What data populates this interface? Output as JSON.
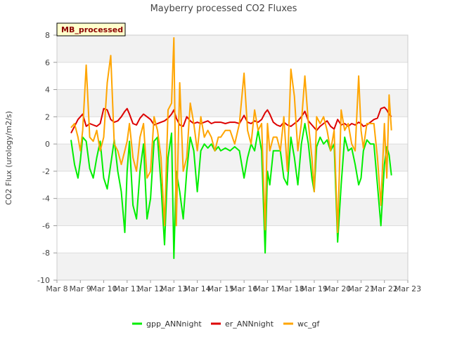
{
  "chart_data": {
    "type": "line",
    "title": "Mayberry processed CO2 Fluxes",
    "ylabel": "CO2 Flux (urology/m2/s)",
    "xlabel": "",
    "ylim": [
      -10,
      8
    ],
    "yticks": [
      -10,
      -8,
      -6,
      -4,
      -2,
      0,
      2,
      4,
      6,
      8
    ],
    "xlim": [
      8,
      23
    ],
    "xticks": [
      {
        "value": 8,
        "label": "Mar 8"
      },
      {
        "value": 9,
        "label": "Mar 9"
      },
      {
        "value": 10,
        "label": "Mar 10"
      },
      {
        "value": 11,
        "label": "Mar 11"
      },
      {
        "value": 12,
        "label": "Mar 12"
      },
      {
        "value": 13,
        "label": "Mar 13"
      },
      {
        "value": 14,
        "label": "Mar 14"
      },
      {
        "value": 15,
        "label": "Mar 15"
      },
      {
        "value": 16,
        "label": "Mar 16"
      },
      {
        "value": 17,
        "label": "Mar 17"
      },
      {
        "value": 18,
        "label": "Mar 18"
      },
      {
        "value": 19,
        "label": "Mar 19"
      },
      {
        "value": 20,
        "label": "Mar 20"
      },
      {
        "value": 21,
        "label": "Mar 21"
      },
      {
        "value": 22,
        "label": "Mar 22"
      },
      {
        "value": 23,
        "label": "Mar 23"
      }
    ],
    "annotation": "MB_processed",
    "legend_position": "bottom",
    "series": [
      {
        "name": "gpp_ANNnight",
        "color": "#00ee00",
        "x": [
          8.6,
          8.75,
          8.9,
          9.0,
          9.1,
          9.25,
          9.4,
          9.55,
          9.7,
          9.85,
          10.0,
          10.15,
          10.3,
          10.45,
          10.6,
          10.75,
          10.9,
          11.0,
          11.1,
          11.25,
          11.4,
          11.55,
          11.7,
          11.85,
          12.0,
          12.15,
          12.3,
          12.45,
          12.6,
          12.75,
          12.9,
          13.0,
          13.1,
          13.25,
          13.4,
          13.55,
          13.7,
          13.85,
          14.0,
          14.15,
          14.3,
          14.45,
          14.6,
          14.75,
          14.9,
          15.0,
          15.2,
          15.4,
          15.6,
          15.8,
          16.0,
          16.15,
          16.3,
          16.45,
          16.6,
          16.75,
          16.9,
          17.0,
          17.1,
          17.25,
          17.4,
          17.55,
          17.7,
          17.85,
          18.0,
          18.15,
          18.3,
          18.45,
          18.6,
          18.75,
          18.9,
          19.0,
          19.1,
          19.25,
          19.4,
          19.55,
          19.7,
          19.85,
          20.0,
          20.15,
          20.3,
          20.45,
          20.6,
          20.75,
          20.9,
          21.0,
          21.1,
          21.25,
          21.4,
          21.55,
          21.7,
          21.85,
          22.0,
          22.1,
          22.2,
          22.3
        ],
        "values": [
          0.3,
          -1.5,
          -2.5,
          -1.2,
          0.5,
          0.2,
          -1.8,
          -2.5,
          -1.0,
          0.2,
          -2.5,
          -3.3,
          -1.5,
          0.3,
          -2.0,
          -3.5,
          -6.5,
          -2.0,
          0.2,
          -4.5,
          -5.5,
          -2.0,
          0.0,
          -5.5,
          -4.0,
          0.2,
          0.5,
          -3.0,
          -7.4,
          -1.0,
          0.8,
          -8.4,
          -2.0,
          -3.5,
          -5.5,
          -2.0,
          0.5,
          -0.5,
          -3.5,
          -0.5,
          0.0,
          -0.3,
          0.0,
          -0.5,
          -0.2,
          -0.5,
          -0.3,
          -0.5,
          -0.2,
          -0.5,
          -2.5,
          -1.0,
          0.0,
          -0.5,
          1.0,
          -0.5,
          -8.0,
          -2.0,
          -3.0,
          -0.5,
          -0.5,
          -0.5,
          -2.5,
          -3.0,
          0.5,
          -1.0,
          -3.0,
          0.0,
          1.5,
          0.0,
          -2.5,
          -3.5,
          -0.2,
          0.5,
          0.0,
          0.3,
          -0.5,
          0.0,
          -7.2,
          -3.0,
          0.5,
          -0.5,
          -0.3,
          -1.5,
          -3.0,
          -2.5,
          -0.5,
          0.3,
          0.0,
          0.0,
          -3.0,
          -6.0,
          -1.5,
          -0.2,
          -0.8,
          -2.3
        ]
      },
      {
        "name": "er_ANNnight",
        "color": "#dd0000",
        "x": [
          8.6,
          8.75,
          8.9,
          9.0,
          9.1,
          9.25,
          9.4,
          9.55,
          9.7,
          9.85,
          10.0,
          10.15,
          10.3,
          10.45,
          10.6,
          10.75,
          10.9,
          11.0,
          11.1,
          11.25,
          11.4,
          11.55,
          11.7,
          11.85,
          12.0,
          12.15,
          12.3,
          12.45,
          12.6,
          12.75,
          12.9,
          13.0,
          13.1,
          13.25,
          13.4,
          13.55,
          13.7,
          13.85,
          14.0,
          14.15,
          14.3,
          14.45,
          14.6,
          14.75,
          14.9,
          15.0,
          15.2,
          15.4,
          15.6,
          15.8,
          16.0,
          16.15,
          16.3,
          16.45,
          16.6,
          16.75,
          16.9,
          17.0,
          17.1,
          17.25,
          17.4,
          17.55,
          17.7,
          17.85,
          18.0,
          18.15,
          18.3,
          18.45,
          18.6,
          18.75,
          18.9,
          19.0,
          19.1,
          19.25,
          19.4,
          19.55,
          19.7,
          19.85,
          20.0,
          20.15,
          20.3,
          20.45,
          20.6,
          20.75,
          20.9,
          21.0,
          21.1,
          21.25,
          21.4,
          21.55,
          21.7,
          21.85,
          22.0,
          22.1,
          22.2,
          22.3
        ],
        "values": [
          0.8,
          1.3,
          1.8,
          2.0,
          2.2,
          1.3,
          1.5,
          1.4,
          1.3,
          1.5,
          2.6,
          2.5,
          1.8,
          1.6,
          1.7,
          2.0,
          2.4,
          2.6,
          2.2,
          1.5,
          1.4,
          1.9,
          2.2,
          2.0,
          1.8,
          1.4,
          1.5,
          1.6,
          1.7,
          1.9,
          2.2,
          2.5,
          1.9,
          1.4,
          1.3,
          2.0,
          1.7,
          1.5,
          1.6,
          1.5,
          1.6,
          1.7,
          1.5,
          1.6,
          1.6,
          1.6,
          1.5,
          1.6,
          1.6,
          1.5,
          2.1,
          1.6,
          1.5,
          1.7,
          1.6,
          1.8,
          2.3,
          2.5,
          2.2,
          1.6,
          1.4,
          1.3,
          1.6,
          1.4,
          1.3,
          1.5,
          1.7,
          2.0,
          2.4,
          1.7,
          1.4,
          1.2,
          1.0,
          1.3,
          1.5,
          1.7,
          1.3,
          1.1,
          1.8,
          1.4,
          1.5,
          1.3,
          1.5,
          1.4,
          1.6,
          1.5,
          1.3,
          1.4,
          1.6,
          1.8,
          1.9,
          2.6,
          2.7,
          2.5,
          2.2,
          2.0
        ]
      },
      {
        "name": "wc_gf",
        "color": "#ffa500",
        "x": [
          8.6,
          8.75,
          8.9,
          9.0,
          9.1,
          9.25,
          9.4,
          9.55,
          9.7,
          9.85,
          10.0,
          10.15,
          10.3,
          10.45,
          10.6,
          10.75,
          10.9,
          11.0,
          11.1,
          11.25,
          11.4,
          11.55,
          11.7,
          11.85,
          12.0,
          12.15,
          12.3,
          12.45,
          12.6,
          12.75,
          12.9,
          13.0,
          13.1,
          13.25,
          13.4,
          13.55,
          13.7,
          13.85,
          14.0,
          14.15,
          14.3,
          14.45,
          14.6,
          14.75,
          14.9,
          15.0,
          15.2,
          15.4,
          15.6,
          15.8,
          16.0,
          16.15,
          16.3,
          16.45,
          16.6,
          16.75,
          16.9,
          17.0,
          17.1,
          17.25,
          17.4,
          17.55,
          17.7,
          17.85,
          18.0,
          18.15,
          18.3,
          18.45,
          18.6,
          18.75,
          18.9,
          19.0,
          19.1,
          19.25,
          19.4,
          19.55,
          19.7,
          19.85,
          20.0,
          20.15,
          20.3,
          20.45,
          20.6,
          20.75,
          20.9,
          21.0,
          21.1,
          21.25,
          21.4,
          21.55,
          21.7,
          21.85,
          22.0,
          22.1,
          22.2,
          22.3
        ],
        "values": [
          1.2,
          1.5,
          0.5,
          -0.5,
          1.0,
          5.8,
          0.5,
          0.2,
          1.0,
          -0.5,
          0.5,
          4.5,
          6.5,
          0.0,
          -0.5,
          -1.5,
          -0.5,
          0.2,
          1.5,
          -1.0,
          -2.0,
          0.5,
          1.5,
          -2.5,
          -2.0,
          2.0,
          1.0,
          -1.0,
          -6.0,
          2.5,
          3.0,
          7.8,
          -6.0,
          4.5,
          -2.0,
          -1.0,
          3.0,
          1.5,
          -0.5,
          2.0,
          0.5,
          1.0,
          0.5,
          -0.5,
          0.5,
          0.5,
          1.0,
          1.0,
          0.0,
          1.5,
          5.2,
          1.0,
          0.0,
          2.5,
          1.0,
          1.5,
          -6.3,
          1.5,
          -0.5,
          0.5,
          0.5,
          -0.5,
          2.0,
          -2.0,
          5.5,
          3.5,
          -0.5,
          1.5,
          5.0,
          1.5,
          -1.0,
          -3.5,
          2.0,
          1.5,
          2.0,
          1.0,
          -0.5,
          1.0,
          -6.5,
          2.5,
          1.0,
          1.5,
          0.0,
          -0.5,
          5.0,
          1.0,
          -0.3,
          1.5,
          1.5,
          1.5,
          -1.0,
          -4.5,
          1.5,
          -2.5,
          3.6,
          1.0
        ]
      }
    ]
  }
}
